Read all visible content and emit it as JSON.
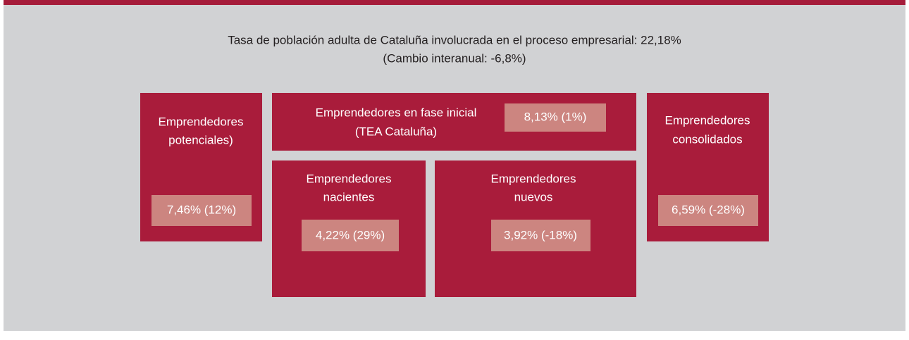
{
  "header": {
    "title": "Tasa de población adulta de Cataluña involucrada en el proceso empresarial: 22,18%",
    "subtitle": "(Cambio interanual: -6,8%)"
  },
  "nodes": [
    {
      "label": [
        "Emprendedores",
        "potenciales)"
      ],
      "value": "7,46% (12%)"
    },
    {
      "label": [
        "Emprendedores en fase inicial",
        "(TEA Cataluña)"
      ],
      "value": "8,13% (1%)"
    },
    {
      "label": [
        "Emprendedores",
        "nacientes"
      ],
      "value": "4,22% (29%)"
    },
    {
      "label": [
        "Emprendedores",
        "nuevos"
      ],
      "value": "3,92% (-18%)"
    },
    {
      "label": [
        "Emprendedores",
        "consolidados"
      ],
      "value": "6,59% (-28%)"
    }
  ]
}
